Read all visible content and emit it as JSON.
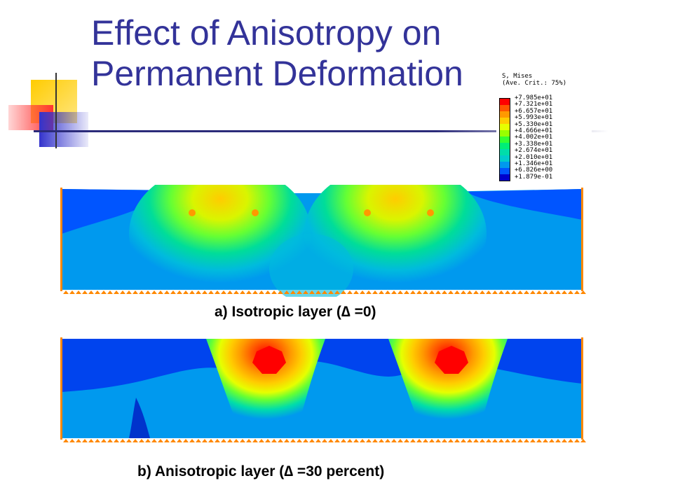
{
  "slide": {
    "title": "Effect of Anisotropy on\nPermanent Deformation"
  },
  "legend": {
    "header_line1": "S, Mises",
    "header_line2": "(Ave. Crit.: 75%)",
    "values": [
      "+7.985e+01",
      "+7.321e+01",
      "+6.657e+01",
      "+5.993e+01",
      "+5.330e+01",
      "+4.666e+01",
      "+4.002e+01",
      "+3.338e+01",
      "+2.674e+01",
      "+2.010e+01",
      "+1.346e+01",
      "+6.826e+00",
      "+1.879e-01"
    ],
    "colors": [
      "#ff0000",
      "#ff5500",
      "#ff9900",
      "#ffcc00",
      "#e6ff00",
      "#99ff00",
      "#33ff33",
      "#00ee77",
      "#00ddaa",
      "#00cccc",
      "#0099ee",
      "#0055ff",
      "#0000cc"
    ]
  },
  "panels": [
    {
      "caption": "a) Isotropic layer (∆ =0)"
    },
    {
      "caption": "b) Anisotropic layer (∆ =30 percent)"
    }
  ]
}
